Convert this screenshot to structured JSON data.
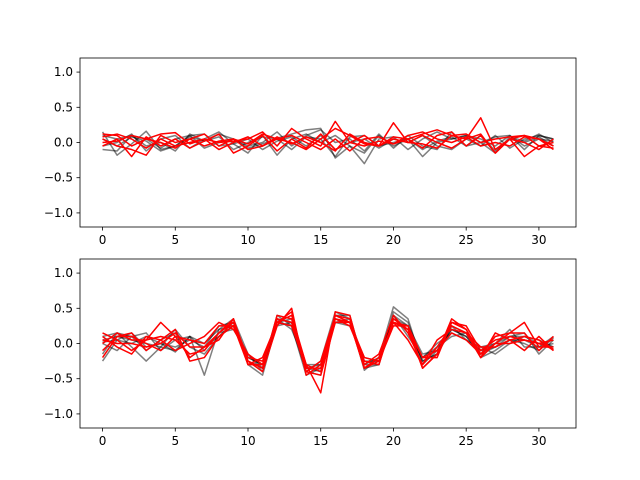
{
  "chart_data": [
    {
      "type": "line",
      "xlim": [
        -1.55,
        32.55
      ],
      "ylim": [
        -1.2,
        1.2
      ],
      "xticks": [
        0,
        5,
        10,
        15,
        20,
        25,
        30
      ],
      "yticks": [
        -1.0,
        -0.5,
        0.0,
        0.5,
        1.0
      ],
      "xtick_labels": [
        "0",
        "5",
        "10",
        "15",
        "20",
        "25",
        "30"
      ],
      "ytick_labels": [
        "−1.0",
        "−0.5",
        "0.0",
        "0.5",
        "1.0"
      ],
      "grid": false,
      "series": [
        {
          "color": "#000000",
          "opacity": 0.5,
          "values": [
            0.15,
            -0.18,
            -0.02,
            0.16,
            -0.1,
            -0.05,
            0.08,
            0.02,
            0.12,
            0.05,
            -0.08,
            -0.02,
            0.06,
            0.12,
            0.18,
            0.2,
            -0.22,
            -0.05,
            -0.15,
            0.1,
            -0.05,
            0.05,
            -0.2,
            0.0,
            0.05,
            0.1,
            0.05,
            -0.05,
            0.1,
            -0.1,
            0.1,
            0.05
          ]
        },
        {
          "color": "#000000",
          "opacity": 0.5,
          "values": [
            -0.05,
            0.0,
            0.12,
            -0.12,
            0.05,
            0.1,
            -0.08,
            0.05,
            0.15,
            -0.02,
            -0.15,
            0.1,
            -0.18,
            0.05,
            0.12,
            0.0,
            0.1,
            -0.05,
            -0.3,
            0.05,
            0.08,
            -0.1,
            0.05,
            0.15,
            0.05,
            0.1,
            0.0,
            -0.15,
            0.08,
            0.02,
            0.12,
            0.0
          ]
        },
        {
          "color": "#000000",
          "opacity": 0.5,
          "values": [
            0.1,
            0.05,
            0.1,
            -0.05,
            0.0,
            -0.12,
            0.12,
            0.02,
            0.08,
            -0.1,
            0.0,
            0.08,
            0.05,
            -0.1,
            0.08,
            0.05,
            -0.2,
            0.08,
            0.1,
            -0.05,
            0.0,
            0.05,
            -0.1,
            0.02,
            0.08,
            -0.05,
            0.1,
            -0.12,
            0.05,
            0.0,
            0.08,
            -0.05
          ]
        },
        {
          "color": "#000000",
          "opacity": 0.5,
          "values": [
            -0.1,
            -0.12,
            0.1,
            0.05,
            -0.08,
            0.05,
            0.1,
            -0.08,
            0.0,
            0.05,
            -0.05,
            0.0,
            0.15,
            -0.05,
            0.1,
            0.18,
            0.0,
            0.05,
            -0.12,
            0.12,
            -0.08,
            0.1,
            -0.05,
            -0.1,
            0.15,
            -0.05,
            0.0,
            0.08,
            0.1,
            -0.05,
            0.05,
            0.02
          ]
        },
        {
          "color": "#000000",
          "opacity": 0.5,
          "values": [
            0.05,
            -0.05,
            0.08,
            0.02,
            -0.12,
            -0.05,
            0.1,
            0.12,
            -0.05,
            -0.02,
            0.05,
            -0.1,
            0.02,
            0.08,
            -0.05,
            0.1,
            -0.1,
            0.0,
            0.05,
            -0.08,
            0.05,
            0.0,
            0.1,
            -0.05,
            -0.1,
            0.05,
            -0.05,
            0.1,
            -0.08,
            0.05,
            0.1,
            0.05
          ]
        },
        {
          "color": "#ff0000",
          "opacity": 1.0,
          "values": [
            0.12,
            0.1,
            -0.05,
            0.05,
            0.12,
            0.14,
            -0.02,
            0.05,
            0.0,
            0.02,
            0.05,
            0.15,
            -0.05,
            0.2,
            0.05,
            -0.05,
            0.3,
            0.0,
            0.1,
            -0.05,
            0.08,
            0.05,
            0.12,
            0.18,
            0.1,
            0.12,
            0.0,
            0.05,
            0.08,
            0.1,
            0.05,
            -0.05
          ]
        },
        {
          "color": "#ff0000",
          "opacity": 1.0,
          "values": [
            -0.05,
            0.05,
            -0.2,
            0.08,
            -0.05,
            0.05,
            -0.08,
            0.02,
            0.12,
            -0.15,
            -0.05,
            0.1,
            -0.12,
            0.05,
            -0.08,
            0.12,
            -0.1,
            0.0,
            -0.05,
            0.02,
            -0.02,
            0.05,
            -0.08,
            0.1,
            0.15,
            -0.05,
            0.1,
            -0.15,
            0.05,
            0.1,
            -0.05,
            0.0
          ]
        },
        {
          "color": "#ff0000",
          "opacity": 1.0,
          "values": [
            0.0,
            0.02,
            0.1,
            0.05,
            0.0,
            -0.08,
            0.05,
            -0.05,
            0.02,
            0.05,
            -0.02,
            0.12,
            0.05,
            0.0,
            -0.1,
            0.05,
            0.2,
            0.1,
            -0.02,
            -0.05,
            0.28,
            0.0,
            0.1,
            0.0,
            -0.08,
            0.05,
            0.35,
            -0.1,
            0.05,
            0.0,
            -0.1,
            0.05
          ]
        },
        {
          "color": "#ff0000",
          "opacity": 1.0,
          "values": [
            0.05,
            -0.05,
            -0.1,
            -0.18,
            0.1,
            0.0,
            0.05,
            0.12,
            -0.05,
            0.05,
            -0.1,
            -0.05,
            0.08,
            -0.02,
            0.08,
            0.0,
            -0.12,
            0.12,
            0.0,
            -0.05,
            0.05,
            0.0,
            -0.02,
            -0.08,
            0.1,
            0.05,
            0.12,
            -0.15,
            0.05,
            -0.2,
            -0.05,
            -0.08
          ]
        },
        {
          "color": "#ff0000",
          "opacity": 1.0,
          "values": [
            0.08,
            0.12,
            0.05,
            -0.08,
            0.05,
            -0.05,
            0.0,
            0.05,
            -0.1,
            0.0,
            0.08,
            -0.05,
            0.05,
            0.1,
            0.0,
            -0.1,
            0.05,
            -0.12,
            0.05,
            0.08,
            -0.02,
            0.1,
            0.15,
            0.05,
            0.0,
            0.08,
            -0.05,
            0.0,
            -0.05,
            0.08,
            0.05,
            -0.1
          ]
        }
      ]
    },
    {
      "type": "line",
      "xlim": [
        -1.55,
        32.55
      ],
      "ylim": [
        -1.2,
        1.2
      ],
      "xticks": [
        0,
        5,
        10,
        15,
        20,
        25,
        30
      ],
      "yticks": [
        -1.0,
        -0.5,
        0.0,
        0.5,
        1.0
      ],
      "xtick_labels": [
        "0",
        "5",
        "10",
        "15",
        "20",
        "25",
        "30"
      ],
      "ytick_labels": [
        "−1.0",
        "−0.5",
        "0.0",
        "0.5",
        "1.0"
      ],
      "grid": false,
      "series": [
        {
          "color": "#000000",
          "opacity": 0.5,
          "values": [
            -0.25,
            0.05,
            0.15,
            -0.05,
            0.0,
            -0.12,
            0.1,
            -0.45,
            0.2,
            0.35,
            -0.15,
            -0.4,
            0.35,
            0.3,
            -0.4,
            -0.25,
            0.45,
            0.35,
            -0.38,
            -0.2,
            0.52,
            0.35,
            -0.3,
            -0.1,
            0.2,
            0.1,
            -0.15,
            -0.05,
            0.1,
            0.15,
            -0.15,
            0.05
          ]
        },
        {
          "color": "#000000",
          "opacity": 0.5,
          "values": [
            0.1,
            0.15,
            -0.05,
            -0.25,
            -0.05,
            0.2,
            -0.05,
            -0.15,
            0.1,
            0.3,
            -0.25,
            -0.35,
            0.4,
            0.25,
            -0.4,
            -0.45,
            0.4,
            0.3,
            -0.3,
            -0.3,
            0.4,
            0.1,
            -0.2,
            0.0,
            0.15,
            0.05,
            -0.05,
            0.0,
            0.2,
            -0.05,
            -0.05,
            0.1
          ]
        },
        {
          "color": "#000000",
          "opacity": 0.5,
          "values": [
            0.0,
            -0.1,
            0.1,
            0.15,
            -0.1,
            0.05,
            0.1,
            0.0,
            0.2,
            0.25,
            -0.2,
            -0.3,
            0.3,
            0.35,
            -0.35,
            -0.3,
            0.3,
            0.25,
            -0.2,
            -0.25,
            0.35,
            0.25,
            -0.15,
            -0.1,
            0.25,
            0.05,
            -0.1,
            0.0,
            0.1,
            0.1,
            0.0,
            -0.05
          ]
        },
        {
          "color": "#000000",
          "opacity": 0.5,
          "values": [
            0.05,
            0.1,
            0.05,
            0.0,
            -0.05,
            -0.1,
            0.1,
            -0.1,
            0.15,
            0.2,
            -0.15,
            -0.35,
            0.25,
            0.3,
            -0.35,
            -0.4,
            0.35,
            0.3,
            -0.3,
            -0.2,
            0.3,
            0.2,
            -0.2,
            -0.05,
            0.1,
            0.15,
            -0.2,
            -0.1,
            0.05,
            0.0,
            -0.1,
            0.08
          ]
        },
        {
          "color": "#000000",
          "opacity": 0.5,
          "values": [
            -0.15,
            0.15,
            0.1,
            -0.1,
            0.05,
            0.15,
            -0.2,
            -0.05,
            0.25,
            0.3,
            -0.3,
            -0.45,
            0.3,
            0.25,
            -0.45,
            -0.35,
            0.4,
            0.4,
            -0.35,
            -0.3,
            0.45,
            0.3,
            -0.25,
            -0.15,
            0.25,
            0.15,
            -0.05,
            -0.15,
            0.0,
            0.1,
            0.05,
            -0.05
          ]
        },
        {
          "color": "#000000",
          "opacity": 0.5,
          "values": [
            0.02,
            0.05,
            0.0,
            0.1,
            0.0,
            -0.05,
            0.05,
            -0.05,
            0.1,
            0.25,
            -0.2,
            -0.3,
            0.35,
            0.2,
            -0.3,
            -0.3,
            0.3,
            0.35,
            -0.25,
            -0.25,
            0.4,
            0.25,
            -0.25,
            -0.15,
            0.2,
            0.1,
            -0.1,
            -0.05,
            0.05,
            0.05,
            -0.05,
            0.0
          ]
        },
        {
          "color": "#ff0000",
          "opacity": 1.0,
          "values": [
            0.15,
            0.05,
            -0.1,
            0.05,
            0.3,
            0.1,
            -0.2,
            -0.05,
            0.05,
            0.35,
            -0.3,
            -0.2,
            0.3,
            0.4,
            -0.3,
            -0.7,
            0.45,
            0.4,
            -0.35,
            -0.2,
            0.3,
            0.2,
            -0.35,
            -0.15,
            0.35,
            0.2,
            -0.15,
            0.1,
            0.15,
            0.3,
            -0.05,
            -0.05
          ]
        },
        {
          "color": "#ff0000",
          "opacity": 1.0,
          "values": [
            -0.2,
            0.1,
            0.15,
            -0.1,
            0.05,
            0.2,
            -0.25,
            -0.2,
            0.1,
            0.25,
            -0.25,
            -0.4,
            0.25,
            0.5,
            -0.45,
            -0.3,
            0.35,
            0.3,
            -0.35,
            -0.2,
            0.3,
            0.05,
            -0.3,
            0.05,
            0.2,
            0.15,
            -0.2,
            0.15,
            0.05,
            -0.1,
            0.1,
            -0.1
          ]
        },
        {
          "color": "#ff0000",
          "opacity": 1.0,
          "values": [
            0.1,
            -0.05,
            -0.15,
            0.1,
            0.05,
            -0.1,
            0.0,
            0.1,
            0.3,
            0.2,
            -0.15,
            -0.3,
            0.35,
            0.3,
            -0.4,
            -0.25,
            0.4,
            0.3,
            -0.2,
            -0.25,
            0.25,
            0.25,
            -0.2,
            -0.2,
            0.3,
            0.25,
            -0.1,
            0.05,
            0.1,
            0.05,
            0.0,
            0.05
          ]
        },
        {
          "color": "#ff0000",
          "opacity": 1.0,
          "values": [
            0.0,
            0.15,
            0.05,
            0.05,
            0.1,
            0.05,
            -0.15,
            -0.1,
            0.15,
            0.35,
            -0.25,
            -0.35,
            0.4,
            0.35,
            -0.3,
            -0.4,
            0.4,
            0.35,
            -0.3,
            -0.15,
            0.4,
            0.15,
            -0.3,
            -0.05,
            0.25,
            0.15,
            -0.05,
            -0.05,
            0.05,
            0.1,
            0.05,
            -0.1
          ]
        },
        {
          "color": "#ff0000",
          "opacity": 1.0,
          "values": [
            0.05,
            0.0,
            0.0,
            -0.05,
            0.0,
            0.15,
            -0.05,
            -0.05,
            0.15,
            0.3,
            -0.2,
            -0.25,
            0.3,
            0.25,
            -0.35,
            -0.35,
            0.35,
            0.25,
            -0.25,
            -0.3,
            0.35,
            0.2,
            -0.2,
            -0.1,
            0.15,
            0.05,
            -0.15,
            0.0,
            0.0,
            0.05,
            0.0,
            -0.08
          ]
        },
        {
          "color": "#ff0000",
          "opacity": 1.0,
          "values": [
            -0.1,
            0.1,
            0.1,
            0.0,
            -0.1,
            0.1,
            0.05,
            0.0,
            0.25,
            0.25,
            -0.3,
            -0.3,
            0.3,
            0.45,
            -0.4,
            -0.45,
            0.3,
            0.3,
            -0.35,
            -0.25,
            0.3,
            0.25,
            -0.35,
            -0.15,
            0.3,
            0.2,
            -0.2,
            0.0,
            0.15,
            0.15,
            -0.1,
            0.1
          ]
        }
      ]
    }
  ]
}
